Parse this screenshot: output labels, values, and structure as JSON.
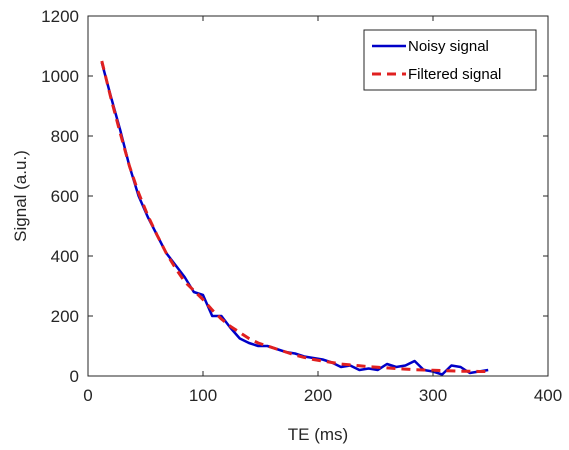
{
  "chart_data": {
    "type": "line",
    "title": "",
    "xlabel": "TE (ms)",
    "ylabel": "Signal (a.u.)",
    "xlim": [
      0,
      400
    ],
    "ylim": [
      0,
      1200
    ],
    "xticks": [
      0,
      100,
      200,
      300,
      400
    ],
    "yticks": [
      0,
      200,
      400,
      600,
      800,
      1000,
      1200
    ],
    "xtick_labels": [
      "0",
      "100",
      "200",
      "300",
      "400"
    ],
    "ytick_labels": [
      "0",
      "200",
      "400",
      "600",
      "800",
      "1000",
      "1200"
    ],
    "grid": false,
    "legend_position": "top-right",
    "series": [
      {
        "name": "Noisy signal",
        "color": "#0000c8",
        "style": "solid",
        "x": [
          12,
          20,
          28,
          36,
          44,
          52,
          60,
          68,
          76,
          84,
          92,
          100,
          108,
          116,
          124,
          132,
          140,
          148,
          156,
          164,
          172,
          180,
          188,
          196,
          204,
          212,
          220,
          228,
          236,
          244,
          252,
          260,
          268,
          276,
          284,
          292,
          300,
          308,
          316,
          324,
          332,
          340,
          348
        ],
        "y": [
          1045,
          930,
          820,
          700,
          600,
          530,
          470,
          410,
          370,
          330,
          280,
          270,
          200,
          200,
          160,
          125,
          110,
          100,
          100,
          90,
          80,
          75,
          65,
          60,
          55,
          45,
          30,
          35,
          20,
          25,
          20,
          40,
          30,
          35,
          50,
          20,
          15,
          5,
          35,
          30,
          10,
          15,
          20
        ]
      },
      {
        "name": "Filtered signal",
        "color": "#e02020",
        "style": "dashed",
        "x": [
          12,
          20,
          28,
          36,
          44,
          52,
          60,
          68,
          76,
          84,
          92,
          100,
          108,
          116,
          124,
          132,
          140,
          148,
          156,
          164,
          172,
          180,
          188,
          196,
          204,
          212,
          220,
          228,
          236,
          244,
          252,
          260,
          268,
          276,
          284,
          292,
          300,
          308,
          316,
          324,
          332,
          340,
          348
        ],
        "y": [
          1050,
          925,
          810,
          700,
          610,
          535,
          470,
          410,
          360,
          315,
          285,
          255,
          220,
          190,
          165,
          145,
          125,
          110,
          100,
          90,
          80,
          70,
          62,
          55,
          50,
          45,
          40,
          37,
          34,
          31,
          29,
          27,
          25,
          23,
          21,
          20,
          19,
          18,
          17,
          16,
          16,
          15,
          15
        ]
      }
    ]
  }
}
